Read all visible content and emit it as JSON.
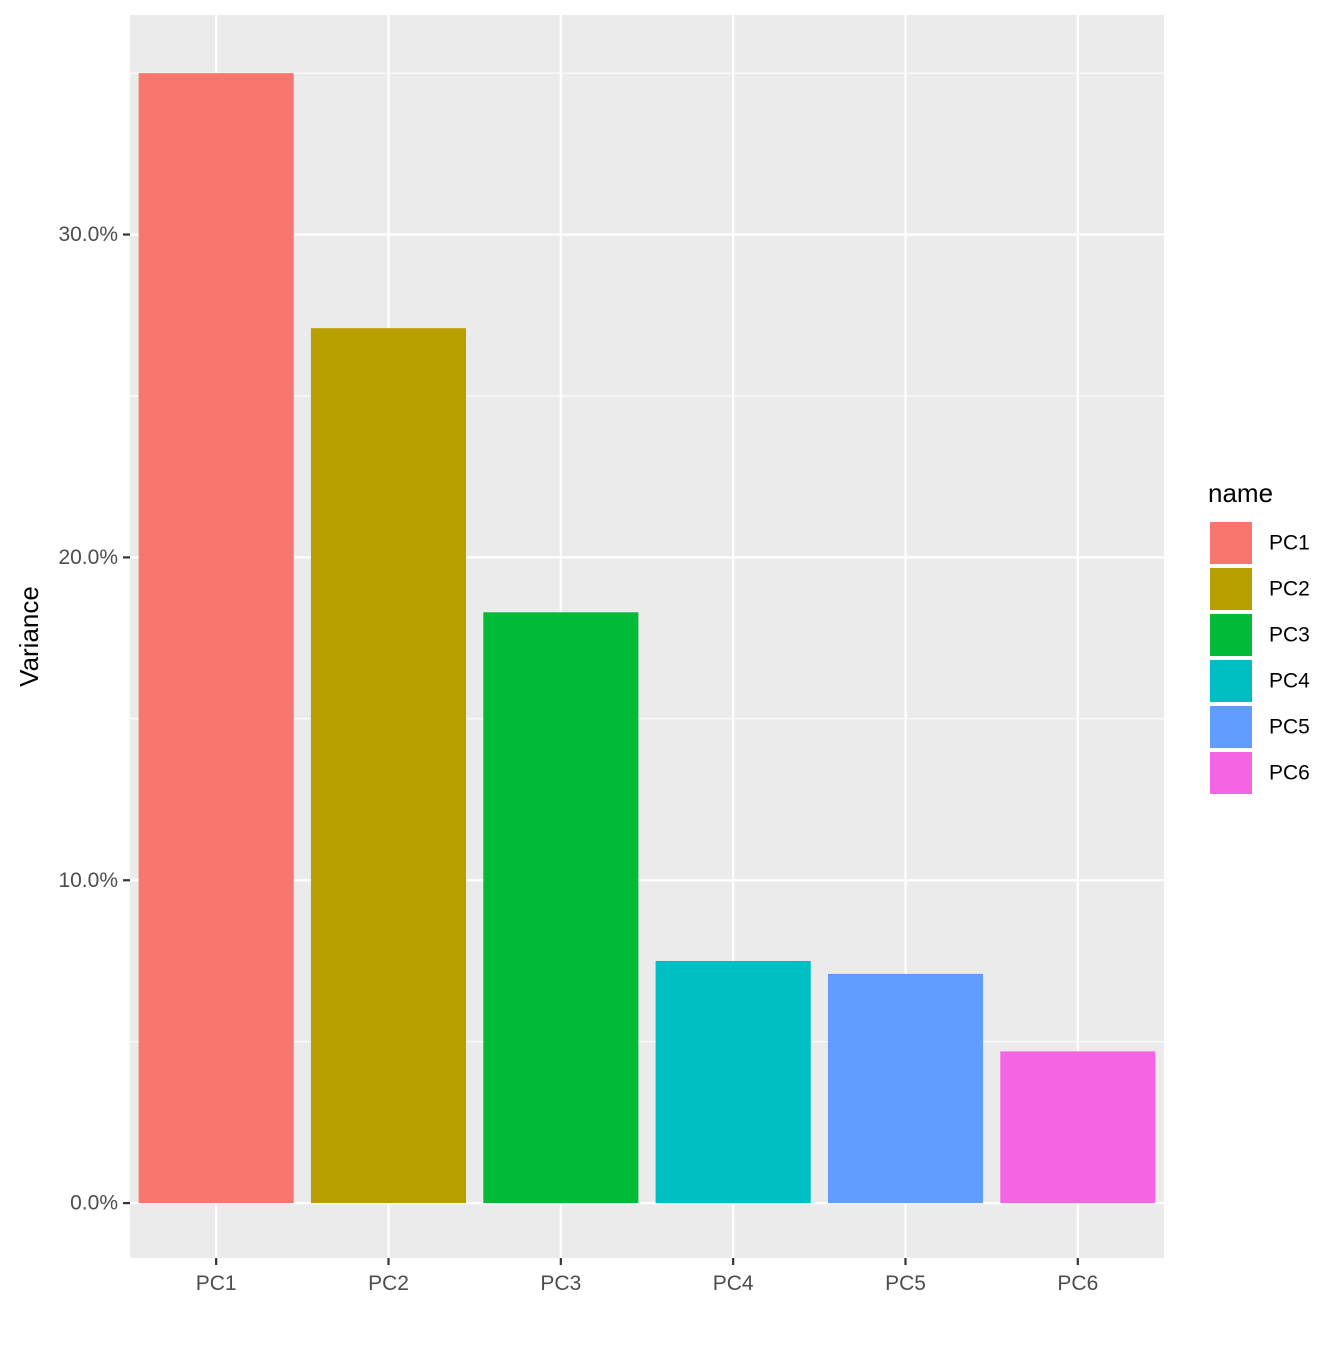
{
  "chart_data": {
    "type": "bar",
    "title": "",
    "xlabel": "",
    "ylabel": "Variance",
    "categories": [
      "PC1",
      "PC2",
      "PC3",
      "PC4",
      "PC5",
      "PC6"
    ],
    "values": [
      35.0,
      27.1,
      18.3,
      7.5,
      7.1,
      4.7
    ],
    "ylim": [
      -1.7,
      36.8
    ],
    "yticks": [
      0,
      10,
      20,
      30
    ],
    "ytick_labels": [
      "0.0%",
      "10.0%",
      "20.0%",
      "30.0%"
    ],
    "grid": true,
    "legend": {
      "title": "name",
      "position": "right",
      "entries": [
        "PC1",
        "PC2",
        "PC3",
        "PC4",
        "PC5",
        "PC6"
      ]
    },
    "colors": [
      "#F8766D",
      "#B79F00",
      "#00BA38",
      "#00BFC4",
      "#619CFF",
      "#F564E3"
    ],
    "panel_background": "#EBEBEB",
    "grid_color": "#FFFFFF"
  }
}
